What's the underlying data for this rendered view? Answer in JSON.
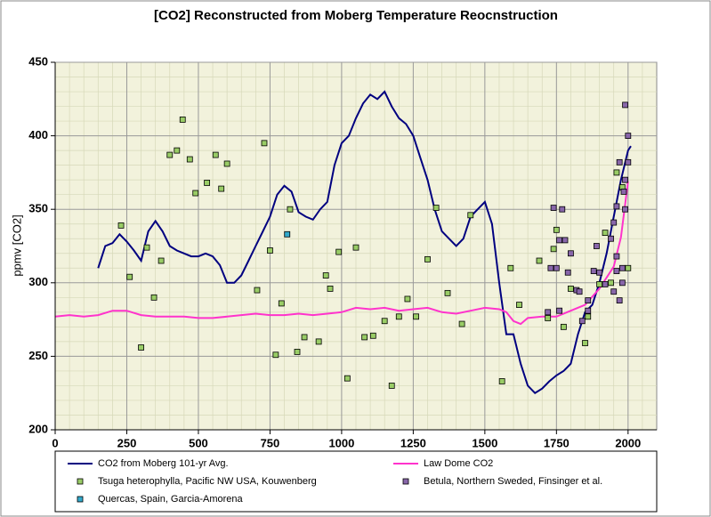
{
  "chart_data": {
    "type": "line",
    "title": "[CO2] Reconstructed from Moberg Temperature Reocnstruction",
    "y_label": "ppmv [CO2]",
    "xlim": [
      0,
      2100
    ],
    "xticks": [
      0,
      250,
      500,
      750,
      1000,
      1250,
      1500,
      1750,
      2000
    ],
    "ylim": [
      200,
      450
    ],
    "yticks": [
      200,
      250,
      300,
      350,
      400,
      450
    ],
    "grid": true,
    "legend": "bottom",
    "series": [
      {
        "name": "CO2 from Moberg 101-yr Avg.",
        "type": "line",
        "color": "#000080",
        "x": [
          150,
          175,
          200,
          225,
          250,
          275,
          300,
          325,
          350,
          375,
          400,
          425,
          450,
          475,
          500,
          525,
          550,
          575,
          600,
          625,
          650,
          675,
          700,
          725,
          750,
          775,
          800,
          825,
          850,
          875,
          900,
          925,
          950,
          975,
          1000,
          1025,
          1050,
          1075,
          1100,
          1125,
          1150,
          1175,
          1200,
          1225,
          1250,
          1275,
          1300,
          1325,
          1350,
          1375,
          1400,
          1425,
          1450,
          1475,
          1500,
          1525,
          1550,
          1575,
          1600,
          1625,
          1650,
          1675,
          1700,
          1725,
          1750,
          1775,
          1800,
          1825,
          1850,
          1875,
          1900,
          1925,
          1950,
          1975,
          2000,
          2010
        ],
        "values": [
          310,
          325,
          327,
          333,
          328,
          322,
          315,
          335,
          342,
          335,
          325,
          322,
          320,
          318,
          318,
          320,
          318,
          312,
          300,
          300,
          305,
          315,
          325,
          335,
          345,
          360,
          366,
          362,
          348,
          345,
          343,
          350,
          355,
          380,
          395,
          400,
          412,
          422,
          428,
          425,
          430,
          420,
          412,
          408,
          400,
          385,
          370,
          350,
          335,
          330,
          325,
          330,
          345,
          350,
          355,
          340,
          300,
          265,
          265,
          245,
          230,
          225,
          228,
          233,
          237,
          240,
          245,
          265,
          280,
          285,
          300,
          320,
          345,
          370,
          390,
          393
        ]
      },
      {
        "name": "Law Dome CO2",
        "type": "line",
        "color": "#ff33cc",
        "x": [
          0,
          50,
          100,
          150,
          200,
          250,
          300,
          350,
          400,
          450,
          500,
          550,
          600,
          650,
          700,
          750,
          800,
          850,
          900,
          950,
          1000,
          1050,
          1100,
          1150,
          1200,
          1250,
          1300,
          1350,
          1400,
          1450,
          1500,
          1550,
          1575,
          1600,
          1625,
          1650,
          1700,
          1750,
          1800,
          1850,
          1900,
          1950,
          1975,
          2000
        ],
        "values": [
          277,
          278,
          277,
          278,
          281,
          281,
          278,
          277,
          277,
          277,
          276,
          276,
          277,
          278,
          279,
          278,
          278,
          279,
          278,
          279,
          280,
          283,
          282,
          283,
          281,
          282,
          283,
          280,
          279,
          281,
          283,
          282,
          280,
          274,
          272,
          276,
          277,
          277,
          281,
          285,
          296,
          311,
          331,
          369
        ]
      },
      {
        "name": "Tsuga heterophylla, Pacific NW USA, Kouwenberg",
        "type": "scatter",
        "color": "#99cc66",
        "x": [
          230,
          260,
          300,
          320,
          345,
          370,
          400,
          425,
          445,
          470,
          490,
          530,
          560,
          580,
          600,
          705,
          730,
          750,
          770,
          790,
          820,
          845,
          870,
          920,
          945,
          960,
          990,
          1020,
          1050,
          1080,
          1110,
          1150,
          1175,
          1200,
          1230,
          1260,
          1300,
          1330,
          1370,
          1420,
          1450,
          1560,
          1590,
          1620,
          1690,
          1720,
          1740,
          1750,
          1775,
          1800,
          1850,
          1860,
          1900,
          1920,
          1940,
          1960,
          1980,
          2000
        ],
        "values": [
          339,
          304,
          256,
          324,
          290,
          315,
          387,
          390,
          411,
          384,
          361,
          368,
          387,
          364,
          381,
          295,
          395,
          322,
          251,
          286,
          350,
          253,
          263,
          260,
          305,
          296,
          321,
          235,
          324,
          263,
          264,
          274,
          230,
          277,
          289,
          277,
          316,
          351,
          293,
          272,
          346,
          233,
          310,
          285,
          315,
          276,
          323,
          336,
          270,
          296,
          259,
          277,
          299,
          334,
          300,
          375,
          365,
          310
        ]
      },
      {
        "name": "Betula, Northern Sweded, Finsinger et al.",
        "type": "scatter",
        "color": "#8866aa",
        "x": [
          1720,
          1730,
          1740,
          1750,
          1760,
          1770,
          1780,
          1790,
          1800,
          1760,
          1820,
          1830,
          1840,
          1860,
          1860,
          1880,
          1890,
          1900,
          1920,
          1940,
          1950,
          1960,
          1960,
          1970,
          1980,
          1950,
          1970,
          1980,
          1990,
          2000,
          1990,
          2000,
          1990,
          1985,
          1960
        ],
        "values": [
          280,
          310,
          351,
          310,
          329,
          350,
          329,
          307,
          320,
          281,
          295,
          294,
          274,
          281,
          288,
          308,
          325,
          307,
          299,
          330,
          341,
          352,
          318,
          382,
          310,
          294,
          288,
          300,
          370,
          382,
          421,
          400,
          350,
          362,
          308
        ]
      },
      {
        "name": "Quercas, Spain, Garcia-Amorena",
        "type": "scatter",
        "color": "#33aacc",
        "x": [
          810
        ],
        "values": [
          333
        ]
      }
    ]
  }
}
